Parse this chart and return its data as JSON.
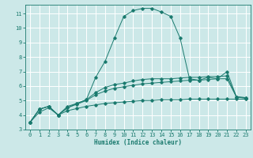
{
  "xlabel": "Humidex (Indice chaleur)",
  "bg_color": "#cce8e8",
  "grid_color": "#ffffff",
  "line_color": "#1a7a6e",
  "xlim": [
    -0.5,
    23.5
  ],
  "ylim": [
    3,
    11.6
  ],
  "yticks": [
    3,
    4,
    5,
    6,
    7,
    8,
    9,
    10,
    11
  ],
  "xticks": [
    0,
    1,
    2,
    3,
    4,
    5,
    6,
    7,
    8,
    9,
    10,
    11,
    12,
    13,
    14,
    15,
    16,
    17,
    18,
    19,
    20,
    21,
    22,
    23
  ],
  "series": [
    {
      "x": [
        0,
        1,
        2,
        3,
        4,
        5,
        6,
        7,
        8,
        9,
        10,
        11,
        12,
        13,
        14,
        15,
        16,
        17,
        18,
        19,
        20,
        21,
        22,
        23
      ],
      "y": [
        3.5,
        4.4,
        4.6,
        4.0,
        4.6,
        4.8,
        5.05,
        6.6,
        7.7,
        9.3,
        10.8,
        11.2,
        11.35,
        11.35,
        11.1,
        10.8,
        9.3,
        6.5,
        6.4,
        6.6,
        6.5,
        7.0,
        5.25,
        5.2
      ]
    },
    {
      "x": [
        0,
        1,
        2,
        3,
        4,
        5,
        6,
        7,
        8,
        9,
        10,
        11,
        12,
        13,
        14,
        15,
        16,
        17,
        18,
        19,
        20,
        21,
        22,
        23
      ],
      "y": [
        3.5,
        4.4,
        4.6,
        4.0,
        4.5,
        4.8,
        5.05,
        5.55,
        5.9,
        6.1,
        6.2,
        6.35,
        6.45,
        6.5,
        6.5,
        6.5,
        6.55,
        6.6,
        6.6,
        6.65,
        6.65,
        6.7,
        5.25,
        5.2
      ]
    },
    {
      "x": [
        0,
        1,
        2,
        3,
        4,
        5,
        6,
        7,
        8,
        9,
        10,
        11,
        12,
        13,
        14,
        15,
        16,
        17,
        18,
        19,
        20,
        21,
        22,
        23
      ],
      "y": [
        3.5,
        4.4,
        4.6,
        4.0,
        4.5,
        4.75,
        5.0,
        5.4,
        5.65,
        5.85,
        5.95,
        6.05,
        6.15,
        6.2,
        6.25,
        6.3,
        6.35,
        6.4,
        6.4,
        6.45,
        6.5,
        6.5,
        5.25,
        5.15
      ]
    },
    {
      "x": [
        0,
        1,
        2,
        3,
        4,
        5,
        6,
        7,
        8,
        9,
        10,
        11,
        12,
        13,
        14,
        15,
        16,
        17,
        18,
        19,
        20,
        21,
        22,
        23
      ],
      "y": [
        3.5,
        4.2,
        4.5,
        4.0,
        4.3,
        4.45,
        4.6,
        4.7,
        4.8,
        4.85,
        4.9,
        4.95,
        5.0,
        5.0,
        5.05,
        5.05,
        5.05,
        5.1,
        5.1,
        5.1,
        5.1,
        5.1,
        5.1,
        5.1
      ]
    }
  ]
}
